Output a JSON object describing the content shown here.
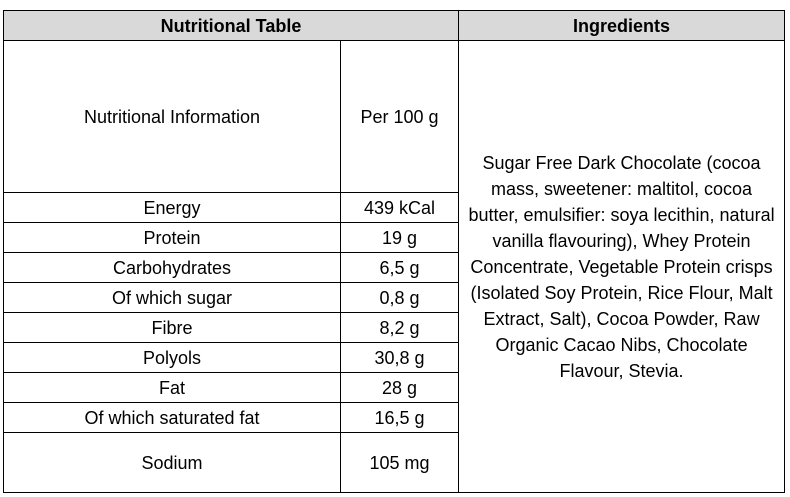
{
  "headers": {
    "nutrition": "Nutritional Table",
    "ingredients": "Ingredients"
  },
  "info_row": {
    "label": "Nutritional Information",
    "per": "Per 100 g"
  },
  "nutrients": [
    {
      "name": "Energy",
      "value": "439 kCal"
    },
    {
      "name": "Protein",
      "value": "19 g"
    },
    {
      "name": "Carbohydrates",
      "value": "6,5 g"
    },
    {
      "name": "Of which sugar",
      "value": "0,8 g"
    },
    {
      "name": "Fibre",
      "value": "8,2 g"
    },
    {
      "name": "Polyols",
      "value": "30,8 g"
    },
    {
      "name": "Fat",
      "value": "28 g"
    },
    {
      "name": "Of which saturated fat",
      "value": "16,5 g"
    },
    {
      "name": "Sodium",
      "value": "105 mg"
    }
  ],
  "ingredients_text": "Sugar Free Dark Chocolate (cocoa mass, sweetener: maltitol, cocoa butter, emulsifier: soya  lecithin, natural vanilla flavouring), Whey Protein Concentrate, Vegetable Protein crisps (Isolated Soy Protein, Rice Flour, Malt Extract, Salt), Cocoa Powder, Raw Organic Cacao Nibs, Chocolate Flavour, Stevia.",
  "colors": {
    "header_bg": "#d9d9d9",
    "border": "#000000"
  }
}
